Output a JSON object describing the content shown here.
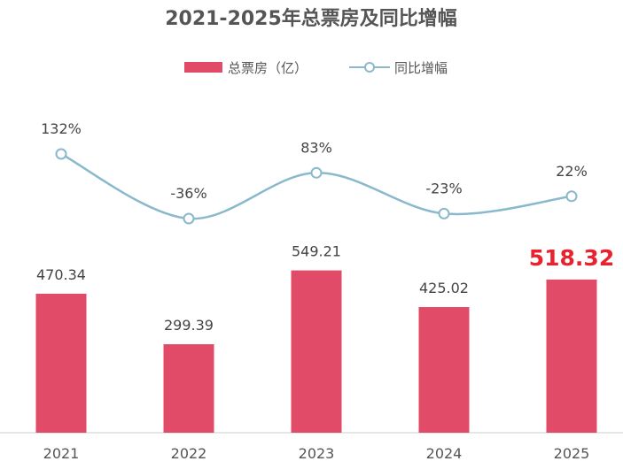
{
  "chart_data": {
    "type": "bar+line",
    "title": "2021-2025年总票房及同比增幅",
    "categories": [
      "2021",
      "2022",
      "2023",
      "2024",
      "2025"
    ],
    "series": [
      {
        "name": "总票房（亿）",
        "type": "bar",
        "values": [
          470.34,
          299.39,
          549.21,
          425.02,
          518.32
        ],
        "labels": [
          "470.34",
          "299.39",
          "549.21",
          "425.02",
          "518.32"
        ],
        "color": "#e14b68"
      },
      {
        "name": "同比增幅",
        "type": "line",
        "values": [
          132,
          -36,
          83,
          -23,
          22
        ],
        "labels": [
          "132%",
          "-36%",
          "83%",
          "-23%",
          "22%"
        ],
        "color": "#8ab8cc"
      }
    ],
    "highlight": {
      "index": 4,
      "color": "#e8232f"
    },
    "legend": "top-center",
    "grid": false
  }
}
